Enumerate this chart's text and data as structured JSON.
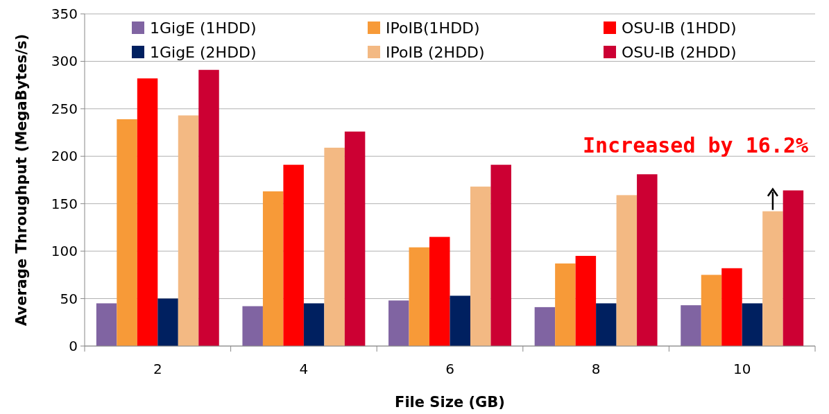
{
  "chart_data": {
    "type": "bar",
    "xlabel": "File Size (GB)",
    "ylabel": "Average Throughput (MegaBytes/s)",
    "categories": [
      "2",
      "4",
      "6",
      "8",
      "10"
    ],
    "series": [
      {
        "name": "1GigE (1HDD)",
        "color": "#8064a2",
        "values": [
          45,
          42,
          48,
          41,
          43
        ]
      },
      {
        "name": "IPoIB(1HDD)",
        "color": "#f79a38",
        "values": [
          239,
          163,
          104,
          87,
          75
        ]
      },
      {
        "name": "OSU-IB (1HDD)",
        "color": "#ff0000",
        "values": [
          282,
          191,
          115,
          95,
          82
        ]
      },
      {
        "name": "1GigE (2HDD)",
        "color": "#002060",
        "values": [
          50,
          45,
          53,
          45,
          45
        ]
      },
      {
        "name": "IPoIB (2HDD)",
        "color": "#f3b983",
        "values": [
          243,
          209,
          168,
          159,
          142
        ]
      },
      {
        "name": "OSU-IB (2HDD)",
        "color": "#cc0033",
        "values": [
          291,
          226,
          191,
          181,
          164
        ]
      }
    ],
    "ylim": [
      0,
      350
    ],
    "yticks": [
      0,
      50,
      100,
      150,
      200,
      250,
      300,
      350
    ],
    "grid": "y",
    "legend": "top",
    "annotations": [
      "Increased by 16.2%"
    ]
  }
}
